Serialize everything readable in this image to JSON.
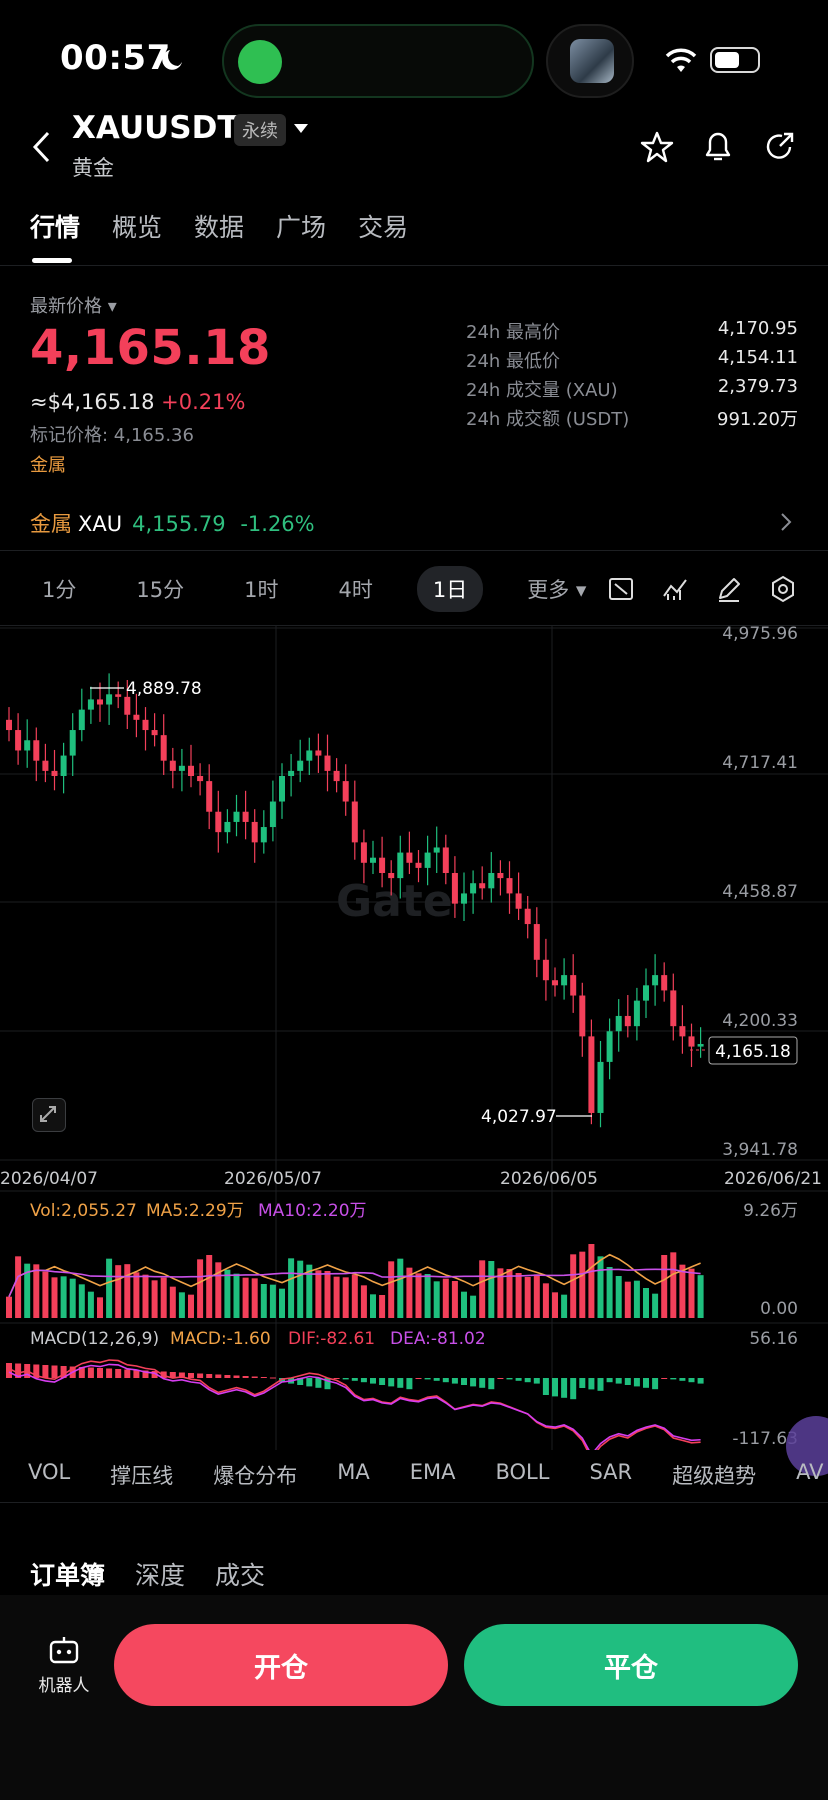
{
  "status": {
    "time": "00:57"
  },
  "header": {
    "symbol": "XAUUSDT",
    "badge": "永续",
    "name": "黄金"
  },
  "tabs": [
    "行情",
    "概览",
    "数据",
    "广场",
    "交易"
  ],
  "price": {
    "label": "最新价格",
    "last": "4,165.18",
    "approx": "≈$4,165.18",
    "change": "+0.21%",
    "mark": "标记价格: 4,165.36",
    "category_tag": "金属"
  },
  "stats": [
    {
      "label": "24h 最高价",
      "value": "4,170.95"
    },
    {
      "label": "24h 最低价",
      "value": "4,154.11"
    },
    {
      "label": "24h 成交量 (XAU)",
      "value": "2,379.73"
    },
    {
      "label": "24h 成交额 (USDT)",
      "value": "991.20万"
    }
  ],
  "related": {
    "category": "金属",
    "symbol": "XAU",
    "price": "4,155.79",
    "change": "-1.26%"
  },
  "intervals": [
    "1分",
    "15分",
    "1时",
    "4时",
    "1日",
    "更多"
  ],
  "chart": {
    "watermark": "Gate",
    "price_axis": [
      "4,975.96",
      "4,717.41",
      "4,458.87",
      "4,200.33",
      "3,941.78"
    ],
    "high_label": "4,889.78",
    "low_label": "4,027.97",
    "current_label": "4,165.18",
    "date_axis": [
      "2026/04/07",
      "2026/05/07",
      "2026/06/05",
      "2026/06/21"
    ],
    "volume_legend": {
      "vol": "Vol:2,055.27",
      "ma5": "MA5:2.29万",
      "ma10": "MA10:2.20万"
    },
    "volume_axis": [
      "9.26万",
      "0.00"
    ],
    "macd_legend": {
      "name": "MACD(12,26,9)",
      "macd": "MACD:-1.60",
      "dif": "DIF:-82.61",
      "dea": "DEA:-81.02"
    },
    "macd_axis": [
      "56.16",
      "-117.63"
    ],
    "colors": {
      "up": "#1fbf7e",
      "down": "#f3405a",
      "vol": "#f0a247",
      "ma10": "#c850e8",
      "dea": "#d63df0"
    }
  },
  "chart_data": {
    "type": "candlestick",
    "x": [
      "2026/04/07",
      "2026/05/07",
      "2026/06/05",
      "2026/06/21"
    ],
    "ylim": [
      3941.78,
      4975.96
    ],
    "high": 4889.78,
    "low": 4027.97,
    "last": 4165.18,
    "closes_approx": [
      4780,
      4740,
      4760,
      4720,
      4700,
      4690,
      4730,
      4780,
      4820,
      4840,
      4830,
      4850,
      4845,
      4810,
      4800,
      4780,
      4770,
      4720,
      4700,
      4710,
      4690,
      4680,
      4620,
      4580,
      4600,
      4620,
      4600,
      4560,
      4590,
      4640,
      4690,
      4700,
      4720,
      4740,
      4730,
      4700,
      4680,
      4640,
      4560,
      4520,
      4530,
      4500,
      4490,
      4540,
      4520,
      4510,
      4540,
      4550,
      4500,
      4440,
      4460,
      4480,
      4470,
      4500,
      4490,
      4460,
      4430,
      4400,
      4330,
      4290,
      4280,
      4300,
      4260,
      4180,
      4030,
      4130,
      4190,
      4220,
      4200,
      4250,
      4280,
      4300,
      4270,
      4200,
      4180,
      4160,
      4165
    ]
  },
  "indicators": [
    "VOL",
    "撑压线",
    "爆仓分布",
    "MA",
    "EMA",
    "BOLL",
    "SAR",
    "超级趋势",
    "AV"
  ],
  "book_tabs": [
    "订单簿",
    "深度",
    "成交"
  ],
  "bottom": {
    "robot": "机器人",
    "open": "开仓",
    "close": "平仓"
  }
}
